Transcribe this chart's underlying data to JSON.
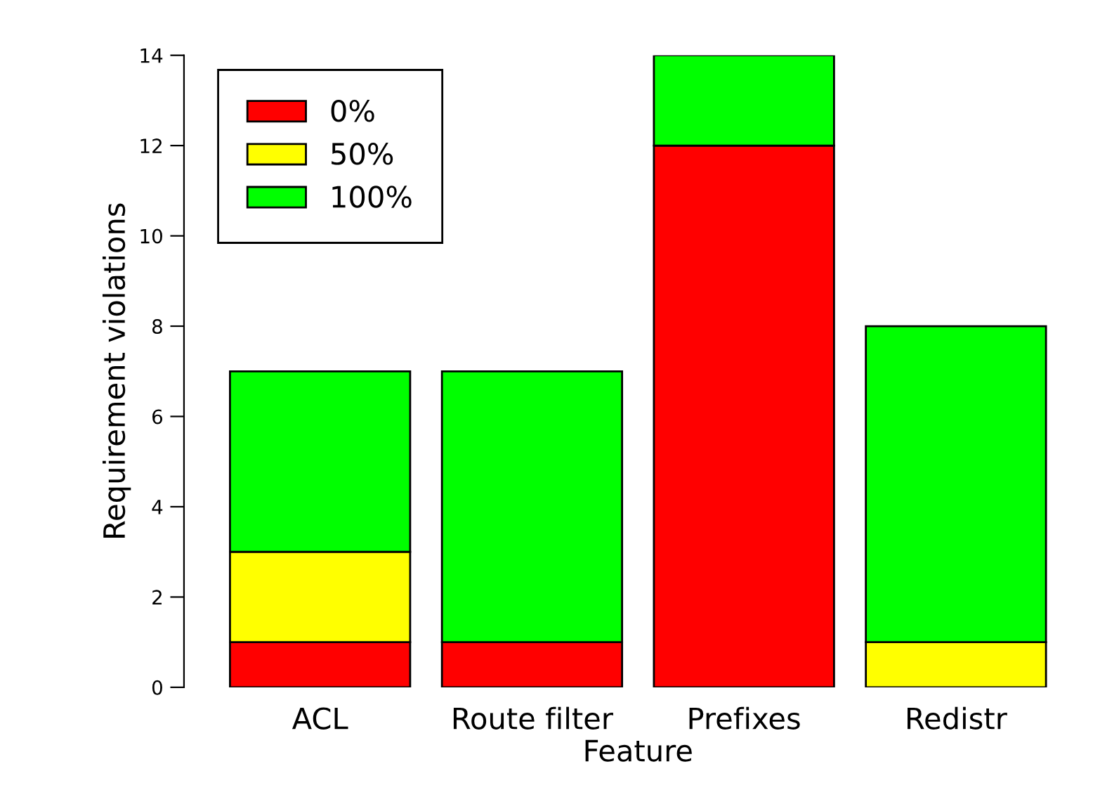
{
  "chart_data": {
    "type": "bar",
    "stacked": true,
    "xlabel": "Feature",
    "ylabel": "Requirement violations",
    "categories": [
      "ACL",
      "Route filter",
      "Prefixes",
      "Redistr"
    ],
    "series": [
      {
        "name": "0%",
        "color": "#ff0000",
        "values": [
          1,
          1,
          12,
          0
        ]
      },
      {
        "name": "50%",
        "color": "#ffff00",
        "values": [
          2,
          0,
          0,
          1
        ]
      },
      {
        "name": "100%",
        "color": "#00ff00",
        "values": [
          4,
          6,
          2,
          7
        ]
      }
    ],
    "ylim": [
      0,
      14
    ],
    "yticks": [
      0,
      2,
      4,
      6,
      8,
      10,
      12,
      14
    ],
    "legend": "top left",
    "grid": false
  }
}
